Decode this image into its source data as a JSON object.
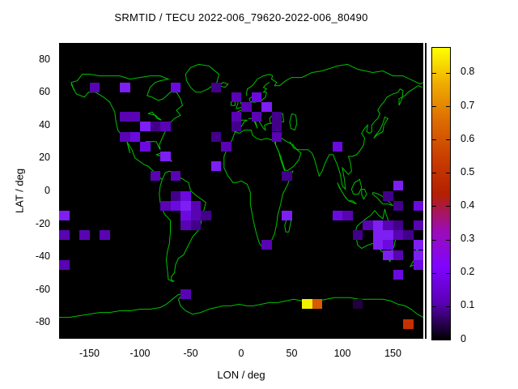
{
  "title": "SRMTID / TECU 2022-006_79620-2022-006_80490",
  "axes": {
    "x_label": "LON / deg",
    "y_label": "LAT / deg",
    "x_ticks": [
      -150,
      -100,
      -50,
      0,
      50,
      100,
      150
    ],
    "y_ticks": [
      80,
      60,
      40,
      20,
      0,
      -20,
      -40,
      -60,
      -80
    ]
  },
  "colorbar": {
    "tick_labels": [
      "0",
      "0.1",
      "0.2",
      "0.3",
      "0.4",
      "0.5",
      "0.6",
      "0.7",
      "0.8"
    ],
    "tick_values": [
      0,
      0.1,
      0.2,
      0.3,
      0.4,
      0.5,
      0.6,
      0.7,
      0.8
    ],
    "min": 0,
    "max": 0.875,
    "gradient_bottom_to_top": [
      "#000000",
      "#5a00b4",
      "#8004ff",
      "#9c0db4",
      "#b42000",
      "#ca3e00",
      "#dd6c00",
      "#efab00",
      "#ffff00"
    ]
  },
  "chart_data": {
    "type": "heatmap",
    "title": "SRMTID / TECU 2022-006_79620-2022-006_80490",
    "xlabel": "LON / deg",
    "ylabel": "LAT / deg",
    "xlim": [
      -180,
      180
    ],
    "ylim": [
      -90,
      90
    ],
    "value_unit": "TECU",
    "value_range": [
      0,
      0.875
    ],
    "cell_size_deg": {
      "lon": 10,
      "lat": 6
    },
    "background_color": "#000000",
    "coastline_color": "#00c000",
    "palette": {
      "d1": {
        "value": 0.04,
        "color": "#22003e"
      },
      "d2": {
        "value": 0.11,
        "color": "#42008a"
      },
      "m1": {
        "value": 0.16,
        "color": "#5804b2"
      },
      "m2": {
        "value": 0.21,
        "color": "#6b0ade"
      },
      "b1": {
        "value": 0.27,
        "color": "#7d1ef2"
      },
      "red": {
        "value": 0.52,
        "color": "#c53000"
      },
      "org": {
        "value": 0.63,
        "color": "#d75b00"
      },
      "yel": {
        "value": 0.87,
        "color": "#f5ef00"
      }
    },
    "cells": [
      [
        -150,
        66,
        "m1"
      ],
      [
        -120,
        66,
        "b1"
      ],
      [
        -70,
        66,
        "m2"
      ],
      [
        -30,
        66,
        "d2"
      ],
      [
        -10,
        60,
        "m1"
      ],
      [
        10,
        60,
        "m2"
      ],
      [
        0,
        54,
        "m1"
      ],
      [
        20,
        54,
        "b1"
      ],
      [
        -120,
        48,
        "m1"
      ],
      [
        -110,
        48,
        "m1"
      ],
      [
        -10,
        48,
        "m1"
      ],
      [
        10,
        48,
        "m1"
      ],
      [
        30,
        48,
        "d2"
      ],
      [
        -100,
        42,
        "b1"
      ],
      [
        -90,
        42,
        "d2"
      ],
      [
        -80,
        42,
        "m1"
      ],
      [
        -10,
        42,
        "d2"
      ],
      [
        30,
        42,
        "d2"
      ],
      [
        -120,
        36,
        "m1"
      ],
      [
        -110,
        36,
        "m2"
      ],
      [
        -30,
        36,
        "d2"
      ],
      [
        30,
        36,
        "m1"
      ],
      [
        -100,
        30,
        "m2"
      ],
      [
        -20,
        30,
        "m1"
      ],
      [
        90,
        30,
        "m2"
      ],
      [
        -80,
        24,
        "b1"
      ],
      [
        -30,
        18,
        "b1"
      ],
      [
        -90,
        12,
        "m1"
      ],
      [
        -70,
        12,
        "m1"
      ],
      [
        40,
        12,
        "d2"
      ],
      [
        150,
        6,
        "b1"
      ],
      [
        -70,
        0,
        "d2"
      ],
      [
        -60,
        0,
        "m2"
      ],
      [
        140,
        0,
        "d2"
      ],
      [
        -80,
        -6,
        "m1"
      ],
      [
        -70,
        -6,
        "m2"
      ],
      [
        -60,
        -6,
        "b1"
      ],
      [
        -50,
        -6,
        "m1"
      ],
      [
        150,
        -6,
        "d2"
      ],
      [
        170,
        -6,
        "m2"
      ],
      [
        -180,
        -12,
        "b1"
      ],
      [
        -60,
        -12,
        "m2"
      ],
      [
        -50,
        -12,
        "m1"
      ],
      [
        -40,
        -12,
        "d2"
      ],
      [
        40,
        -12,
        "b1"
      ],
      [
        90,
        -12,
        "m2"
      ],
      [
        100,
        -12,
        "m1"
      ],
      [
        -60,
        -18,
        "m1"
      ],
      [
        -50,
        -18,
        "d2"
      ],
      [
        120,
        -18,
        "m1"
      ],
      [
        130,
        -18,
        "b1"
      ],
      [
        140,
        -18,
        "m1"
      ],
      [
        150,
        -18,
        "d2"
      ],
      [
        170,
        -18,
        "m1"
      ],
      [
        -180,
        -24,
        "m1"
      ],
      [
        -160,
        -24,
        "m1"
      ],
      [
        -140,
        -24,
        "m1"
      ],
      [
        110,
        -24,
        "d2"
      ],
      [
        130,
        -24,
        "b1"
      ],
      [
        140,
        -24,
        "b1"
      ],
      [
        150,
        -24,
        "m1"
      ],
      [
        160,
        -24,
        "d2"
      ],
      [
        20,
        -30,
        "m1"
      ],
      [
        130,
        -30,
        "b1"
      ],
      [
        140,
        -30,
        "m2"
      ],
      [
        170,
        -30,
        "b1"
      ],
      [
        140,
        -36,
        "b1"
      ],
      [
        150,
        -36,
        "m1"
      ],
      [
        170,
        -36,
        "b1"
      ],
      [
        -180,
        -42,
        "m1"
      ],
      [
        170,
        -42,
        "m2"
      ],
      [
        150,
        -48,
        "m2"
      ],
      [
        -60,
        -60,
        "m1"
      ],
      [
        60,
        -66,
        "yel"
      ],
      [
        70,
        -66,
        "org"
      ],
      [
        110,
        -66,
        "d1"
      ],
      [
        160,
        -78,
        "red"
      ]
    ]
  }
}
